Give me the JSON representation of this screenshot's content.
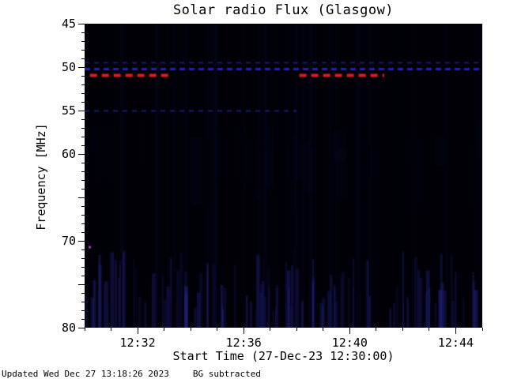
{
  "footer": {
    "updated": "Updated Wed Dec 27 13:18:26 2023",
    "bg_note": "BG subtracted"
  },
  "chart_data": {
    "type": "heatmap",
    "subtype": "radio-spectrogram",
    "title": "Solar radio Flux (Glasgow)",
    "xlabel": "Start Time (27-Dec-23 12:30:00)",
    "ylabel": "Frequency [MHz]",
    "x_range_minutes": [
      0,
      15
    ],
    "x_ticks": [
      {
        "label": "12:32",
        "minute": 2
      },
      {
        "label": "12:36",
        "minute": 6
      },
      {
        "label": "12:40",
        "minute": 10
      },
      {
        "label": "12:44",
        "minute": 14
      }
    ],
    "x_minor_step_minutes": 1,
    "y_range_mhz": [
      45,
      80
    ],
    "y_axis_inverted": true,
    "y_ticks": [
      {
        "label": "45",
        "mhz": 45
      },
      {
        "label": "50",
        "mhz": 50
      },
      {
        "label": "55",
        "mhz": 55
      },
      {
        "label": "60",
        "mhz": 60
      },
      {
        "label": "70",
        "mhz": 70
      },
      {
        "label": "80",
        "mhz": 80
      }
    ],
    "y_unlabeled_ticks_mhz": [
      65,
      75
    ],
    "y_minor_step_mhz": 1,
    "background_color": "#000006",
    "grid": false,
    "legend": "none",
    "series_lines": [
      {
        "name": "red-flagged-channel",
        "freq_mhz": 50.9,
        "color": "#dd1c1c",
        "thickness": 4,
        "dash": [
          9,
          6
        ],
        "segments_minutes": [
          [
            0.2,
            3.2
          ],
          [
            8.1,
            11.3
          ]
        ]
      },
      {
        "name": "blue-channel-a",
        "freq_mhz": 50.2,
        "color": "#2222aa",
        "thickness": 3,
        "dash": [
          7,
          5
        ],
        "segments_minutes": [
          [
            0,
            15
          ]
        ]
      },
      {
        "name": "blue-channel-b",
        "freq_mhz": 49.5,
        "color": "#191970",
        "thickness": 2,
        "dash": [
          6,
          6
        ],
        "segments_minutes": [
          [
            0,
            15
          ]
        ]
      },
      {
        "name": "blue-channel-c",
        "freq_mhz": 55.0,
        "color": "#1a1a78",
        "thickness": 2,
        "dash": [
          6,
          6
        ],
        "segments_minutes": [
          [
            0,
            8
          ]
        ]
      }
    ],
    "artifacts": [
      {
        "name": "magenta-dot",
        "minute": 0.15,
        "freq_mhz": 70.6,
        "color": "#b040c0",
        "size": 3
      }
    ],
    "noise": {
      "color": "#2a2aa0",
      "band_freq_range_mhz": [
        71,
        80
      ],
      "seed": 42,
      "band_column_count": 110,
      "faint_full_columns": 60,
      "mid_patches": 25
    }
  }
}
